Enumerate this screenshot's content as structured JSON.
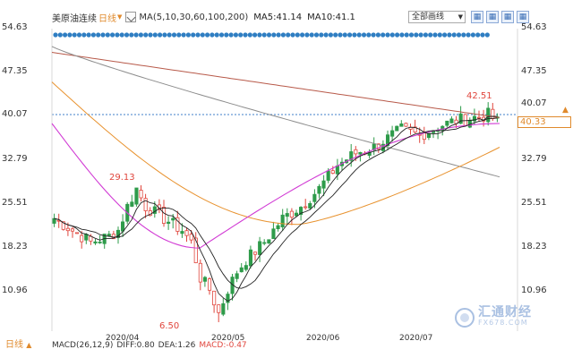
{
  "header": {
    "symbol": "美原油连续",
    "period": "日线",
    "ma_label": "MA(5,10,30,60,100,200)",
    "ma5": "MA5:41.14",
    "ma10": "MA10:41.1",
    "select_value": "全部画线",
    "tool_icons": [
      "▦",
      "▦",
      "▦",
      "▦"
    ]
  },
  "y_axis": {
    "ticks": [
      "54.63",
      "47.35",
      "40.07",
      "32.79",
      "25.51",
      "18.23",
      "10.96"
    ]
  },
  "x_axis": {
    "labels": [
      "2020/04",
      "2020/05",
      "2020/06",
      "2020/07"
    ]
  },
  "price_tag": "40.33",
  "annotations": {
    "high_left": "29.13",
    "low": "6.50",
    "high_right": "42.51"
  },
  "footer": {
    "period": "日线",
    "macd_params": "MACD(26,12,9)",
    "diff": "DIFF:0.80",
    "dea": "DEA:1.26",
    "macd": "MACD:-0.47"
  },
  "watermark": {
    "cn": "汇通财经",
    "en": "FX678.COM"
  },
  "colors": {
    "up": "#e0463d",
    "down": "#2e9b4a",
    "ma5": "#222222",
    "ma10": "#222222",
    "ma30": "#d13ad4",
    "ma60": "#e8922e",
    "ma100": "#8c8c8c",
    "ma200": "#b85a4a",
    "dots": "#2f7ec2",
    "accent": "#e08a2c"
  },
  "chart_data": {
    "type": "line",
    "ylim": [
      6.5,
      54.63
    ]
  }
}
